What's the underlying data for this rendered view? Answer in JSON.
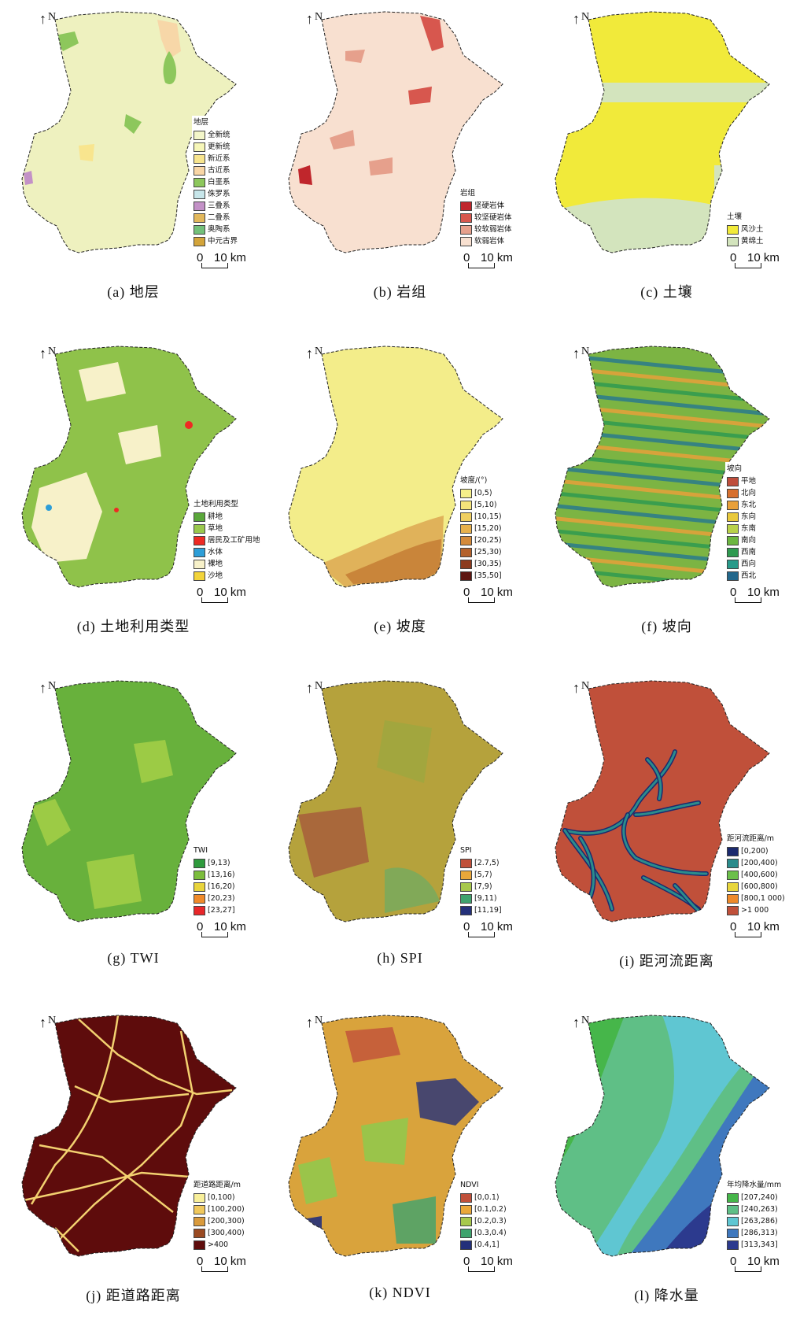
{
  "north_label": "N",
  "scale": {
    "zero": "0",
    "distance": "10 km"
  },
  "panels": [
    {
      "caption": "(a) 地层",
      "legend_title": "地层",
      "legend": [
        {
          "label": "全新统",
          "color": "#f3f6c9"
        },
        {
          "label": "更新统",
          "color": "#f6f6b8"
        },
        {
          "label": "新近系",
          "color": "#f8e58e"
        },
        {
          "label": "古近系",
          "color": "#f9d6a6"
        },
        {
          "label": "白垩系",
          "color": "#8dc75c"
        },
        {
          "label": "侏罗系",
          "color": "#c7e6ea"
        },
        {
          "label": "三叠系",
          "color": "#c391c7"
        },
        {
          "label": "二叠系",
          "color": "#e2b85c"
        },
        {
          "label": "奥陶系",
          "color": "#73c07a"
        },
        {
          "label": "中元古界",
          "color": "#d3a43a"
        }
      ],
      "base": "#eef1bf",
      "patch": "#8dc75c"
    },
    {
      "caption": "(b) 岩组",
      "legend_title": "岩组",
      "legend": [
        {
          "label": "坚硬岩体",
          "color": "#c0262c"
        },
        {
          "label": "较坚硬岩体",
          "color": "#d7574e"
        },
        {
          "label": "较软弱岩体",
          "color": "#e6a08c"
        },
        {
          "label": "软弱岩体",
          "color": "#f8e0d0"
        }
      ],
      "base": "#f8e0d0",
      "patch": "#d7574e"
    },
    {
      "caption": "(c) 土壤",
      "legend_title": "土壤",
      "legend": [
        {
          "label": "风沙土",
          "color": "#f1ea3a"
        },
        {
          "label": "黄绵土",
          "color": "#d3e4bd"
        }
      ],
      "base": "#f1ea3a",
      "patch": "#d3e4bd"
    },
    {
      "caption": "(d) 土地利用类型",
      "legend_title": "土地利用类型",
      "legend": [
        {
          "label": "耕地",
          "color": "#5aa73a"
        },
        {
          "label": "草地",
          "color": "#9ac84d"
        },
        {
          "label": "居民及工矿用地",
          "color": "#ee2a23"
        },
        {
          "label": "水体",
          "color": "#2d9ed8"
        },
        {
          "label": "裸地",
          "color": "#f7f1c9"
        },
        {
          "label": "沙地",
          "color": "#f2d43a"
        }
      ],
      "base": "#8fc24a",
      "patch": "#f7f1c9"
    },
    {
      "caption": "(e) 坡度",
      "legend_title": "坡度/(°)",
      "legend": [
        {
          "label": "[0,5)",
          "color": "#f5ef8a"
        },
        {
          "label": "[5,10)",
          "color": "#f5e47a"
        },
        {
          "label": "[10,15)",
          "color": "#f0cf61"
        },
        {
          "label": "[15,20)",
          "color": "#e8b14c"
        },
        {
          "label": "[20,25)",
          "color": "#d48a3a"
        },
        {
          "label": "[25,30)",
          "color": "#b4622c"
        },
        {
          "label": "[30,35)",
          "color": "#8c3b1e"
        },
        {
          "label": "[35,50]",
          "color": "#5e1712"
        }
      ],
      "base": "#f3ed8a",
      "patch": "#e0b25a"
    },
    {
      "caption": "(f) 坡向",
      "legend_title": "坡向",
      "legend": [
        {
          "label": "平地",
          "color": "#bf4e3c"
        },
        {
          "label": "北向",
          "color": "#d7702e"
        },
        {
          "label": "东北",
          "color": "#e8a03a"
        },
        {
          "label": "东向",
          "color": "#e9c93c"
        },
        {
          "label": "东南",
          "color": "#b9d14a"
        },
        {
          "label": "南向",
          "color": "#6cb640"
        },
        {
          "label": "西南",
          "color": "#2f9a50"
        },
        {
          "label": "西向",
          "color": "#289a8a"
        },
        {
          "label": "西北",
          "color": "#23688c"
        }
      ],
      "base": "#7cb443",
      "patch": "#2a7a8c"
    },
    {
      "caption": "(g) TWI",
      "legend_title": "TWI",
      "legend": [
        {
          "label": "[9,13)",
          "color": "#2e9a3c"
        },
        {
          "label": "[13,16)",
          "color": "#7cbd3c"
        },
        {
          "label": "[16,20)",
          "color": "#e8d43c"
        },
        {
          "label": "[20,23)",
          "color": "#f08a2a"
        },
        {
          "label": "[23,27]",
          "color": "#e8272a"
        }
      ],
      "base": "#68b13c",
      "patch": "#9ccb45"
    },
    {
      "caption": "(h) SPI",
      "legend_title": "SPI",
      "legend": [
        {
          "label": "[2.7,5)",
          "color": "#c0503a"
        },
        {
          "label": "[5,7)",
          "color": "#e9a73a"
        },
        {
          "label": "[7,9)",
          "color": "#a7c84c"
        },
        {
          "label": "[9,11)",
          "color": "#3fa36e"
        },
        {
          "label": "[11,19]",
          "color": "#23307a"
        }
      ],
      "base": "#b5a23c",
      "patch": "#a4503a"
    },
    {
      "caption": "(i) 距河流距离",
      "legend_title": "距河流距离/m",
      "legend": [
        {
          "label": "[0,200)",
          "color": "#1b2a6e"
        },
        {
          "label": "[200,400)",
          "color": "#2b8c8c"
        },
        {
          "label": "[400,600)",
          "color": "#6cbf4a"
        },
        {
          "label": "[600,800)",
          "color": "#e8d63c"
        },
        {
          "label": "[800,1 000)",
          "color": "#ef8a2a"
        },
        {
          "label": ">1 000",
          "color": "#c0503a"
        }
      ],
      "base": "#c0503a",
      "patch": "#2b8c8c"
    },
    {
      "caption": "(j) 距道路距离",
      "legend_title": "距道路距离/m",
      "legend": [
        {
          "label": "[0,100)",
          "color": "#f8ef9a"
        },
        {
          "label": "[100,200)",
          "color": "#f0c85c"
        },
        {
          "label": "[200,300)",
          "color": "#d99a3c"
        },
        {
          "label": "[300,400)",
          "color": "#9a4a22"
        },
        {
          "label": ">400",
          "color": "#5e0c0c"
        }
      ],
      "base": "#5e0c0c",
      "patch": "#f3d170"
    },
    {
      "caption": "(k) NDVI",
      "legend_title": "NDVI",
      "legend": [
        {
          "label": "[0,0.1)",
          "color": "#c0503a"
        },
        {
          "label": "[0.1,0.2)",
          "color": "#e9a73a"
        },
        {
          "label": "[0.2,0.3)",
          "color": "#a7c84c"
        },
        {
          "label": "[0.3,0.4)",
          "color": "#3fa36e"
        },
        {
          "label": "[0.4,1]",
          "color": "#23307a"
        }
      ],
      "base": "#d9a33c",
      "patch": "#9ac44a"
    },
    {
      "caption": "(l) 降水量",
      "legend_title": "年均降水量/mm",
      "legend": [
        {
          "label": "[207,240)",
          "color": "#46b64a"
        },
        {
          "label": "[240,263)",
          "color": "#5fbf86"
        },
        {
          "label": "[263,286)",
          "color": "#5fc6d2"
        },
        {
          "label": "[286,313)",
          "color": "#3f78be"
        },
        {
          "label": "[313,343]",
          "color": "#2c3a8e"
        }
      ],
      "base": "#5fbf86",
      "patch": "#3f78be"
    }
  ]
}
